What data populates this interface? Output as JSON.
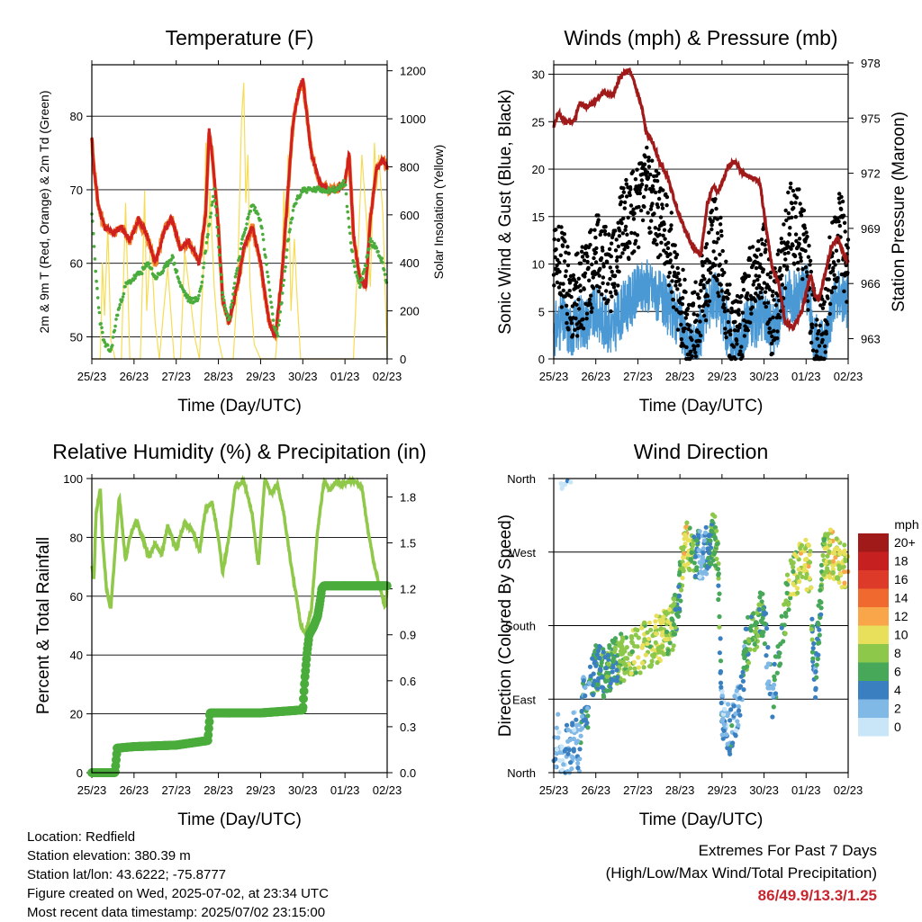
{
  "chart_data": [
    {
      "type": "line",
      "title": "Temperature (F)",
      "xlabel": "Time (Day/UTC)",
      "ylabel": "2m & 9m T (Red, Orange) & 2m Td (Green)",
      "y2label": "Solar Insolation (Yellow)",
      "categories": [
        "25/23",
        "26/23",
        "27/23",
        "28/23",
        "29/23",
        "30/23",
        "01/23",
        "02/23"
      ],
      "ylim": [
        47,
        87
      ],
      "yticks": [
        50,
        60,
        70,
        80
      ],
      "y2lim": [
        0,
        1225
      ],
      "y2ticks": [
        0,
        200,
        400,
        600,
        800,
        1000,
        1200
      ],
      "grid": true,
      "colors": {
        "t2m": "#d0201f",
        "t9m": "#f07f2a",
        "td": "#4aac3b",
        "solar": "#f6dc55"
      },
      "series": [
        {
          "name": "2m T",
          "x": [
            0,
            0.05,
            0.15,
            0.3,
            0.5,
            0.7,
            0.9,
            1.1,
            1.3,
            1.5,
            1.6,
            1.75,
            1.9,
            2.1,
            2.3,
            2.55,
            2.7,
            2.78,
            2.85,
            3.0,
            3.1,
            3.25,
            3.45,
            3.6,
            3.8,
            4.0,
            4.2,
            4.35,
            4.5,
            4.6,
            4.75,
            4.85,
            5.0,
            5.2,
            5.4,
            5.6,
            5.8,
            6.0,
            6.1,
            6.2,
            6.35,
            6.5,
            6.6,
            6.75,
            6.9,
            7.0
          ],
          "values": [
            77,
            73,
            68,
            65,
            64,
            65,
            63,
            66,
            64,
            60,
            62,
            65,
            66,
            62,
            63,
            60,
            67,
            78,
            75,
            65,
            55,
            52,
            57,
            62,
            65,
            60,
            52,
            50,
            58,
            66,
            78,
            82,
            85,
            75,
            71,
            70,
            70,
            71,
            75,
            64,
            58,
            57,
            66,
            73,
            74,
            73
          ]
        },
        {
          "name": "Td",
          "x": [
            0,
            0.1,
            0.2,
            0.3,
            0.45,
            0.6,
            0.8,
            1.0,
            1.2,
            1.35,
            1.5,
            1.7,
            1.9,
            2.1,
            2.3,
            2.5,
            2.6,
            2.7,
            2.8,
            2.9,
            3.0,
            3.1,
            3.25,
            3.4,
            3.6,
            3.8,
            4.0,
            4.2,
            4.3,
            4.4,
            4.5,
            4.65,
            4.8,
            5.0,
            5.2,
            5.4,
            5.6,
            5.8,
            6.0,
            6.1,
            6.2,
            6.35,
            6.5,
            6.6,
            6.75,
            6.9,
            7.0
          ],
          "values": [
            67,
            58,
            52,
            49,
            48,
            53,
            57,
            58,
            59,
            60,
            58,
            59,
            61,
            57,
            55,
            55,
            57,
            62,
            66,
            70,
            63,
            56,
            52,
            58,
            64,
            68,
            66,
            57,
            52,
            50,
            55,
            63,
            68,
            70,
            70,
            70,
            70,
            70,
            71,
            65,
            60,
            57,
            60,
            63,
            62,
            60,
            57
          ]
        },
        {
          "name": "Solar",
          "x": [
            0,
            0.2,
            0.25,
            0.3,
            0.38,
            0.45,
            0.55,
            0.7,
            0.8,
            0.9,
            1.15,
            1.2,
            1.25,
            1.3,
            1.4,
            1.5,
            1.6,
            1.7,
            1.8,
            1.95,
            2.1,
            2.2,
            2.3,
            2.45,
            2.55,
            2.65,
            2.7,
            2.75,
            2.8,
            2.9,
            3.0,
            3.1,
            3.2,
            3.35,
            3.45,
            3.55,
            3.6,
            3.65,
            3.7,
            3.75,
            3.85,
            4.0,
            4.1,
            4.2,
            4.35,
            4.5,
            4.55,
            4.6,
            4.65,
            4.72,
            4.8,
            4.85,
            4.95,
            5.1,
            5.2,
            5.35,
            5.5,
            5.6,
            5.7,
            5.8,
            5.9,
            6.0,
            6.1,
            6.2,
            6.3,
            6.4,
            6.5,
            6.6,
            6.7,
            6.75,
            6.8,
            6.9,
            7.0
          ],
          "values": [
            0,
            0,
            400,
            180,
            550,
            80,
            0,
            0,
            650,
            0,
            0,
            320,
            700,
            200,
            500,
            150,
            0,
            200,
            380,
            0,
            0,
            450,
            300,
            80,
            0,
            400,
            900,
            450,
            700,
            300,
            80,
            0,
            0,
            0,
            300,
            1000,
            1150,
            650,
            850,
            300,
            60,
            0,
            0,
            0,
            0,
            300,
            700,
            450,
            850,
            200,
            500,
            300,
            0,
            0,
            0,
            0,
            0,
            0,
            0,
            0,
            0,
            0,
            0,
            0,
            400,
            850,
            600,
            300,
            900,
            700,
            850,
            600,
            0
          ]
        }
      ]
    },
    {
      "type": "scatter",
      "title": "Winds (mph) & Pressure (mb)",
      "xlabel": "Time (Day/UTC)",
      "ylabel": "Sonic Wind & Gust (Blue, Black)",
      "y2label": "Station Pressure (Maroon)",
      "categories": [
        "25/23",
        "26/23",
        "27/23",
        "28/23",
        "29/23",
        "30/23",
        "01/23",
        "02/23"
      ],
      "ylim": [
        0,
        31
      ],
      "yticks": [
        0,
        5,
        10,
        15,
        20,
        25,
        30
      ],
      "y2lim": [
        961.9,
        977.9
      ],
      "y2ticks": [
        963,
        966,
        969,
        972,
        975,
        978
      ],
      "grid": true,
      "colors": {
        "wind": "#4a98d4",
        "gust": "#000000",
        "pressure": "#a11a1a"
      },
      "series": [
        {
          "name": "Wind",
          "x": [
            0,
            0.2,
            0.4,
            0.6,
            0.8,
            1.0,
            1.2,
            1.4,
            1.6,
            1.8,
            2.0,
            2.2,
            2.4,
            2.6,
            2.8,
            3.0,
            3.2,
            3.4,
            3.6,
            3.8,
            4.0,
            4.2,
            4.4,
            4.6,
            4.8,
            5.0,
            5.2,
            5.4,
            5.6,
            5.8,
            6.0,
            6.2,
            6.4,
            6.6,
            6.8,
            7.0
          ],
          "values": [
            3,
            4,
            3,
            4,
            4,
            5,
            4,
            3,
            5,
            6,
            7,
            8,
            7,
            6,
            5,
            4,
            1,
            1,
            5,
            7,
            5,
            2,
            1,
            4,
            4,
            5,
            3,
            5,
            7,
            6,
            8,
            2,
            1,
            5,
            7,
            6
          ]
        },
        {
          "name": "Gust",
          "x": [
            0,
            0.2,
            0.4,
            0.6,
            0.8,
            1.0,
            1.2,
            1.4,
            1.6,
            1.8,
            2.0,
            2.2,
            2.4,
            2.6,
            2.8,
            3.0,
            3.2,
            3.4,
            3.6,
            3.8,
            4.0,
            4.2,
            4.4,
            4.6,
            4.8,
            5.0,
            5.2,
            5.4,
            5.6,
            5.8,
            6.0,
            6.2,
            6.4,
            6.6,
            6.8,
            7.0
          ],
          "values": [
            9,
            10,
            6,
            7,
            8,
            11,
            10,
            9,
            14,
            15,
            16,
            18,
            16,
            14,
            11,
            6,
            3,
            4,
            8,
            13,
            10,
            3,
            2,
            7,
            9,
            10,
            4,
            8,
            15,
            14,
            11,
            3,
            2,
            10,
            14,
            9
          ]
        },
        {
          "name": "Pressure",
          "x": [
            0,
            0.1,
            0.3,
            0.5,
            0.6,
            0.8,
            1.0,
            1.2,
            1.4,
            1.6,
            1.8,
            1.9,
            2.0,
            2.1,
            2.2,
            2.35,
            2.5,
            2.7,
            2.9,
            3.1,
            3.3,
            3.5,
            3.65,
            3.8,
            3.9,
            4.0,
            4.15,
            4.3,
            4.5,
            4.7,
            4.9,
            5.05,
            5.2,
            5.35,
            5.5,
            5.7,
            5.9,
            6.1,
            6.2,
            6.3,
            6.45,
            6.6,
            6.75,
            6.9,
            7.0
          ],
          "values": [
            974.5,
            975.3,
            974.7,
            974.9,
            975.8,
            975.6,
            976.0,
            976.4,
            976.2,
            977.3,
            977.6,
            977.0,
            976.3,
            975.5,
            974.2,
            973.7,
            972.7,
            971.8,
            970.3,
            969.0,
            968.0,
            967.6,
            970.3,
            971.3,
            971.0,
            971.5,
            972.4,
            972.6,
            972.0,
            971.8,
            971.5,
            969.0,
            966.8,
            966.0,
            963.9,
            963.6,
            964.5,
            966.5,
            965.5,
            965.0,
            966.5,
            968.0,
            968.5,
            967.5,
            967.2
          ]
        }
      ]
    },
    {
      "type": "line",
      "title": "Relative Humidity (%) & Precipitation (in)",
      "xlabel": "Time (Day/UTC)",
      "ylabel": "Percent & Total Rainfall",
      "categories": [
        "25/23",
        "26/23",
        "27/23",
        "28/23",
        "29/23",
        "30/23",
        "01/23",
        "02/23"
      ],
      "ylim": [
        0,
        100
      ],
      "yticks": [
        0,
        20,
        40,
        60,
        80,
        100
      ],
      "y2lim": [
        0,
        1.92
      ],
      "y2ticks": [
        "0.0",
        "0.3",
        "0.6",
        "0.9",
        "1.2",
        "1.5",
        "1.8"
      ],
      "grid": true,
      "colors": {
        "rh": "#90c84a",
        "precip": "#4aac3b"
      },
      "series": [
        {
          "name": "RH",
          "x": [
            0,
            0.05,
            0.1,
            0.2,
            0.25,
            0.35,
            0.45,
            0.55,
            0.65,
            0.8,
            0.9,
            1.05,
            1.2,
            1.35,
            1.5,
            1.65,
            1.8,
            2.0,
            2.2,
            2.4,
            2.55,
            2.7,
            2.85,
            3.0,
            3.1,
            3.25,
            3.4,
            3.6,
            3.8,
            3.95,
            4.1,
            4.25,
            4.4,
            4.55,
            4.75,
            4.85,
            4.95,
            5.05,
            5.2,
            5.35,
            5.5,
            5.65,
            5.8,
            5.95,
            6.1,
            6.25,
            6.4,
            6.55,
            6.7,
            6.85,
            6.95,
            7.0
          ],
          "values": [
            70,
            66,
            88,
            97,
            80,
            62,
            56,
            75,
            94,
            72,
            80,
            86,
            80,
            73,
            78,
            74,
            84,
            76,
            85,
            82,
            75,
            90,
            92,
            80,
            68,
            80,
            97,
            99,
            88,
            70,
            100,
            95,
            98,
            88,
            68,
            60,
            50,
            47,
            55,
            82,
            99,
            96,
            99,
            98,
            99,
            99,
            97,
            82,
            70,
            62,
            56,
            62
          ]
        },
        {
          "name": "Precip",
          "x": [
            0,
            0.55,
            0.6,
            1.0,
            2.0,
            2.25,
            2.75,
            2.8,
            3.0,
            4.0,
            5.0,
            5.02,
            5.05,
            5.1,
            5.15,
            5.25,
            5.35,
            5.4,
            5.45,
            5.5,
            6.0,
            7.0
          ],
          "values": [
            0,
            0,
            0.16,
            0.17,
            0.18,
            0.19,
            0.21,
            0.39,
            0.39,
            0.39,
            0.41,
            0.5,
            0.62,
            0.78,
            0.9,
            0.95,
            1.02,
            1.1,
            1.2,
            1.22,
            1.22,
            1.22
          ]
        }
      ]
    },
    {
      "type": "scatter",
      "title": "Wind Direction",
      "xlabel": "Time (Day/UTC)",
      "ylabel": "Direction (Colored By Speed)",
      "categories": [
        "25/23",
        "26/23",
        "27/23",
        "28/23",
        "29/23",
        "30/23",
        "01/23",
        "02/23"
      ],
      "ylim": [
        0,
        360
      ],
      "ytick_labels": [
        "North",
        "East",
        "South",
        "West",
        "North"
      ],
      "ytick_values": [
        0,
        90,
        180,
        270,
        360
      ],
      "grid": true,
      "legend": {
        "title": "mph",
        "labels": [
          "20+",
          "18",
          "16",
          "14",
          "12",
          "10",
          "8",
          "6",
          "4",
          "2",
          "0"
        ],
        "colors": [
          "#a01a1a",
          "#c62020",
          "#de3a2a",
          "#f06a30",
          "#f9a54a",
          "#e8e05a",
          "#8dc84a",
          "#48a85a",
          "#3a80c0",
          "#80b8e6",
          "#c8e6f8"
        ]
      },
      "series": [
        {
          "name": "Direction",
          "x": [
            0,
            0.1,
            0.2,
            0.3,
            0.4,
            0.5,
            0.6,
            0.7,
            0.8,
            0.9,
            1.0,
            1.2,
            1.4,
            1.6,
            1.8,
            2.0,
            2.2,
            2.4,
            2.6,
            2.8,
            2.95,
            3.0,
            3.1,
            3.2,
            3.3,
            3.5,
            3.7,
            3.8,
            3.9,
            4.0,
            4.1,
            4.2,
            4.4,
            4.6,
            4.8,
            5.0,
            5.1,
            5.2,
            5.4,
            5.6,
            5.8,
            6.0,
            6.1,
            6.2,
            6.4,
            6.6,
            6.8,
            7.0
          ],
          "values": [
            20,
            45,
            5,
            30,
            15,
            60,
            25,
            90,
            80,
            110,
            130,
            120,
            135,
            140,
            145,
            150,
            155,
            160,
            170,
            175,
            200,
            230,
            280,
            275,
            270,
            265,
            275,
            290,
            270,
            70,
            60,
            50,
            80,
            160,
            180,
            200,
            120,
            90,
            160,
            230,
            250,
            255,
            245,
            100,
            260,
            270,
            260,
            240
          ],
          "speed": [
            3,
            2,
            1,
            2,
            3,
            2,
            3,
            4,
            3,
            5,
            5,
            6,
            6,
            7,
            8,
            8,
            8,
            9,
            9,
            8,
            5,
            6,
            11,
            9,
            7,
            2,
            5,
            6,
            7,
            3,
            2,
            4,
            2,
            6,
            7,
            5,
            3,
            4,
            5,
            8,
            9,
            10,
            9,
            2,
            8,
            10,
            9,
            10
          ]
        }
      ]
    }
  ],
  "info": {
    "location": "Location: Redfield",
    "elevation": "Station elevation: 380.39 m",
    "latlon": "Station lat/lon: 43.6222; -75.8777",
    "created": "Figure created on Wed, 2025-07-02, at 23:34 UTC",
    "recent": "Most recent data timestamp: 2025/07/02 23:15:00"
  },
  "extremes": {
    "title": "Extremes For Past 7 Days",
    "subtitle": "(High/Low/Max Wind/Total Precipitation)",
    "values": "86/49.9/13.3/1.25"
  }
}
